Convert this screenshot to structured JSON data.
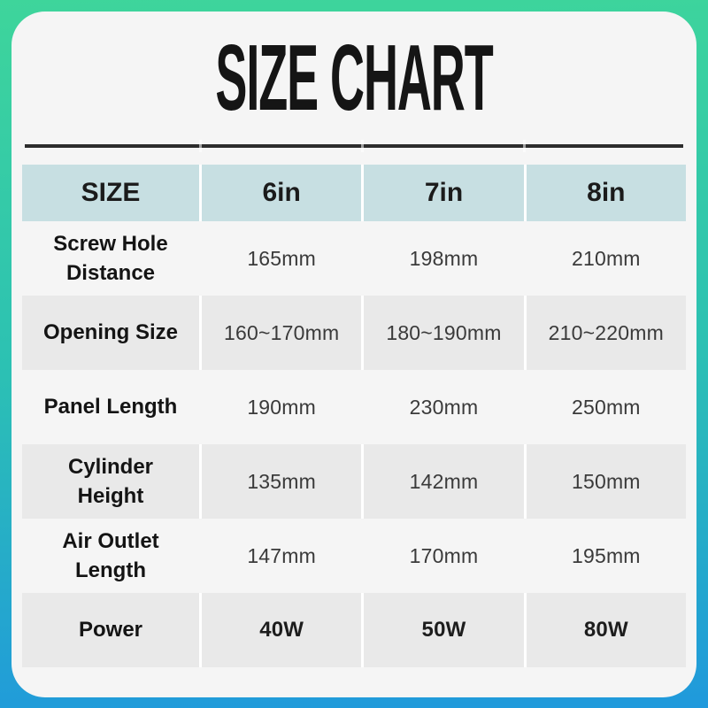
{
  "title": "SIZE CHART",
  "colors": {
    "bg_top": "#3ed59b",
    "bg_mid": "#2cc1b3",
    "bg_bottom": "#2099dc",
    "card_bg": "#f5f5f5",
    "header_bg": "#c7dfe2",
    "row_alt_bg": "#e9e9e9",
    "rule": "#2d2d2d",
    "label_color": "#141414",
    "value_color": "#3a3a3a"
  },
  "chart_data": {
    "type": "table",
    "title": "SIZE CHART",
    "columns": [
      "SIZE",
      "6in",
      "7in",
      "8in"
    ],
    "rows": [
      [
        "Screw Hole Distance",
        "165mm",
        "198mm",
        "210mm"
      ],
      [
        "Opening Size",
        "160~170mm",
        "180~190mm",
        "210~220mm"
      ],
      [
        "Panel Length",
        "190mm",
        "230mm",
        "250mm"
      ],
      [
        "Cylinder Height",
        "135mm",
        "142mm",
        "150mm"
      ],
      [
        "Air Outlet Length",
        "147mm",
        "170mm",
        "195mm"
      ],
      [
        "Power",
        "40W",
        "50W",
        "80W"
      ]
    ]
  }
}
